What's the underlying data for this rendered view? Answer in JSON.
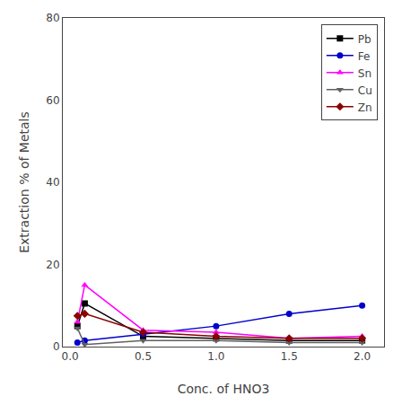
{
  "chart_data": {
    "type": "line",
    "xlabel": "Conc. of HNO3",
    "ylabel": "Extraction % of Metals",
    "x": [
      0.05,
      0.1,
      0.5,
      1.0,
      1.5,
      2.0
    ],
    "series": [
      {
        "name": "Pb",
        "color": "#000000",
        "marker": "square",
        "line_style": "solid",
        "values": [
          5.0,
          10.5,
          2.5,
          2.0,
          1.5,
          1.5
        ]
      },
      {
        "name": "Fe",
        "color": "#0000CC",
        "marker": "circle",
        "line_style": "solid",
        "values": [
          1.0,
          1.5,
          3.0,
          5.0,
          8.0,
          10.0
        ]
      },
      {
        "name": "Sn",
        "color": "#FF00FF",
        "marker": "triangle-up",
        "line_style": "solid",
        "values": [
          6.0,
          15.0,
          4.0,
          3.5,
          2.0,
          2.5
        ]
      },
      {
        "name": "Cu",
        "color": "#606060",
        "marker": "triangle-down",
        "line_style": "solid",
        "values": [
          4.5,
          0.5,
          1.5,
          1.5,
          1.0,
          1.0
        ]
      },
      {
        "name": "Zn",
        "color": "#8B0000",
        "marker": "diamond",
        "line_style": "solid",
        "values": [
          7.5,
          8.0,
          3.5,
          2.5,
          2.0,
          2.0
        ]
      }
    ],
    "xlim": [
      -0.05,
      2.15
    ],
    "ylim": [
      0,
      80
    ],
    "xticks": [
      {
        "value": 0,
        "label": "0.0"
      },
      0.5,
      {
        "value": 1,
        "label": "1.0"
      },
      1.5,
      {
        "value": 2,
        "label": "2.0"
      }
    ],
    "yticks": [
      0,
      20,
      40,
      60,
      80
    ],
    "grid": false,
    "legend": "upper right"
  }
}
